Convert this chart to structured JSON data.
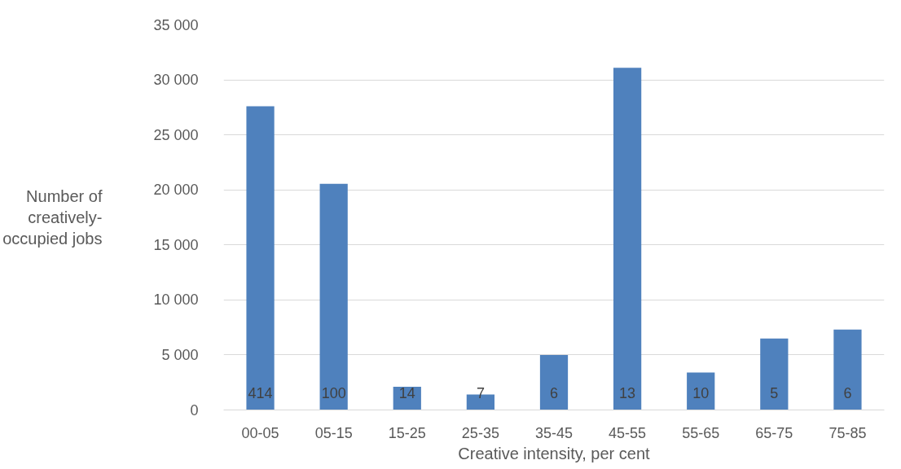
{
  "chart_data": {
    "type": "bar",
    "xlabel": "Creative intensity, per cent",
    "ylabel": "Number of creatively-occupied jobs",
    "categories": [
      "00-05",
      "05-15",
      "15-25",
      "25-35",
      "35-45",
      "45-55",
      "55-65",
      "65-75",
      "75-85"
    ],
    "values": [
      27600,
      20550,
      2100,
      1400,
      5000,
      31100,
      3400,
      6500,
      7300
    ],
    "color": "#4f81bd",
    "ylim": [
      0,
      35000
    ],
    "yticks": [
      0,
      {
        "value": 5000,
        "label": "5 000"
      },
      {
        "value": 10000,
        "label": "10 000"
      },
      {
        "value": 15000,
        "label": "15 000"
      },
      {
        "value": 20000,
        "label": "20 000"
      },
      {
        "value": 25000,
        "label": "25 000"
      },
      {
        "value": 30000,
        "label": "30 000"
      },
      {
        "value": 35000,
        "label": "35 000"
      }
    ],
    "grid": "y",
    "annotations": [
      "414",
      "100",
      "14",
      "7",
      "6",
      "13",
      "10",
      "5",
      "6"
    ]
  }
}
